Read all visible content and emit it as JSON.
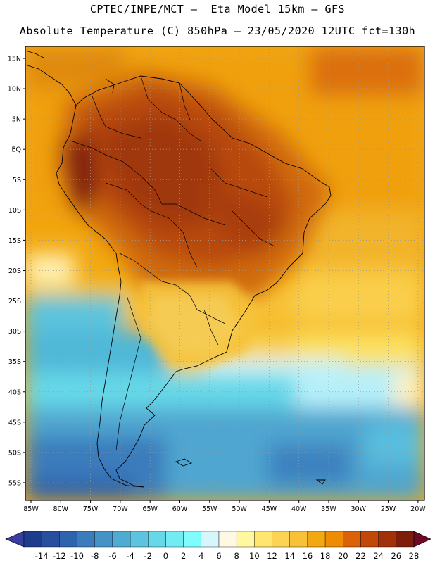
{
  "title_line1": "CPTEC/INPE/MCT –  Eta Model 15km – GFS",
  "title_line2": "Absolute Temperature (C) 850hPa – 23/05/2020 12UTC fct=130h",
  "lat_labels": [
    "15N",
    "10N",
    "5N",
    "EQ",
    "5S",
    "10S",
    "15S",
    "20S",
    "25S",
    "30S",
    "35S",
    "40S",
    "45S",
    "50S",
    "55S"
  ],
  "lon_labels": [
    "85W",
    "80W",
    "75W",
    "70W",
    "65W",
    "60W",
    "55W",
    "50W",
    "45W",
    "40W",
    "35W",
    "30W",
    "25W",
    "20W"
  ],
  "colorbar": {
    "labels": [
      "-14",
      "-12",
      "-10",
      "-8",
      "-6",
      "-4",
      "-2",
      "0",
      "2",
      "4",
      "6",
      "8",
      "10",
      "12",
      "14",
      "16",
      "18",
      "20",
      "22",
      "24",
      "26",
      "28"
    ],
    "colors": [
      "#1e3c8c",
      "#26509e",
      "#2e64ae",
      "#3a7cbc",
      "#4593c6",
      "#50abd2",
      "#5cc4de",
      "#66d8e8",
      "#72ecf2",
      "#80fcfc",
      "#d6f6fc",
      "#fff8e2",
      "#fff8a0",
      "#ffe66e",
      "#fcd454",
      "#f8c238",
      "#f2a810",
      "#ee8c06",
      "#dc620a",
      "#c2480a",
      "#a23008",
      "#7e1e0a"
    ],
    "under_color": "#3a3ca0",
    "over_color": "#6e0a24"
  }
}
